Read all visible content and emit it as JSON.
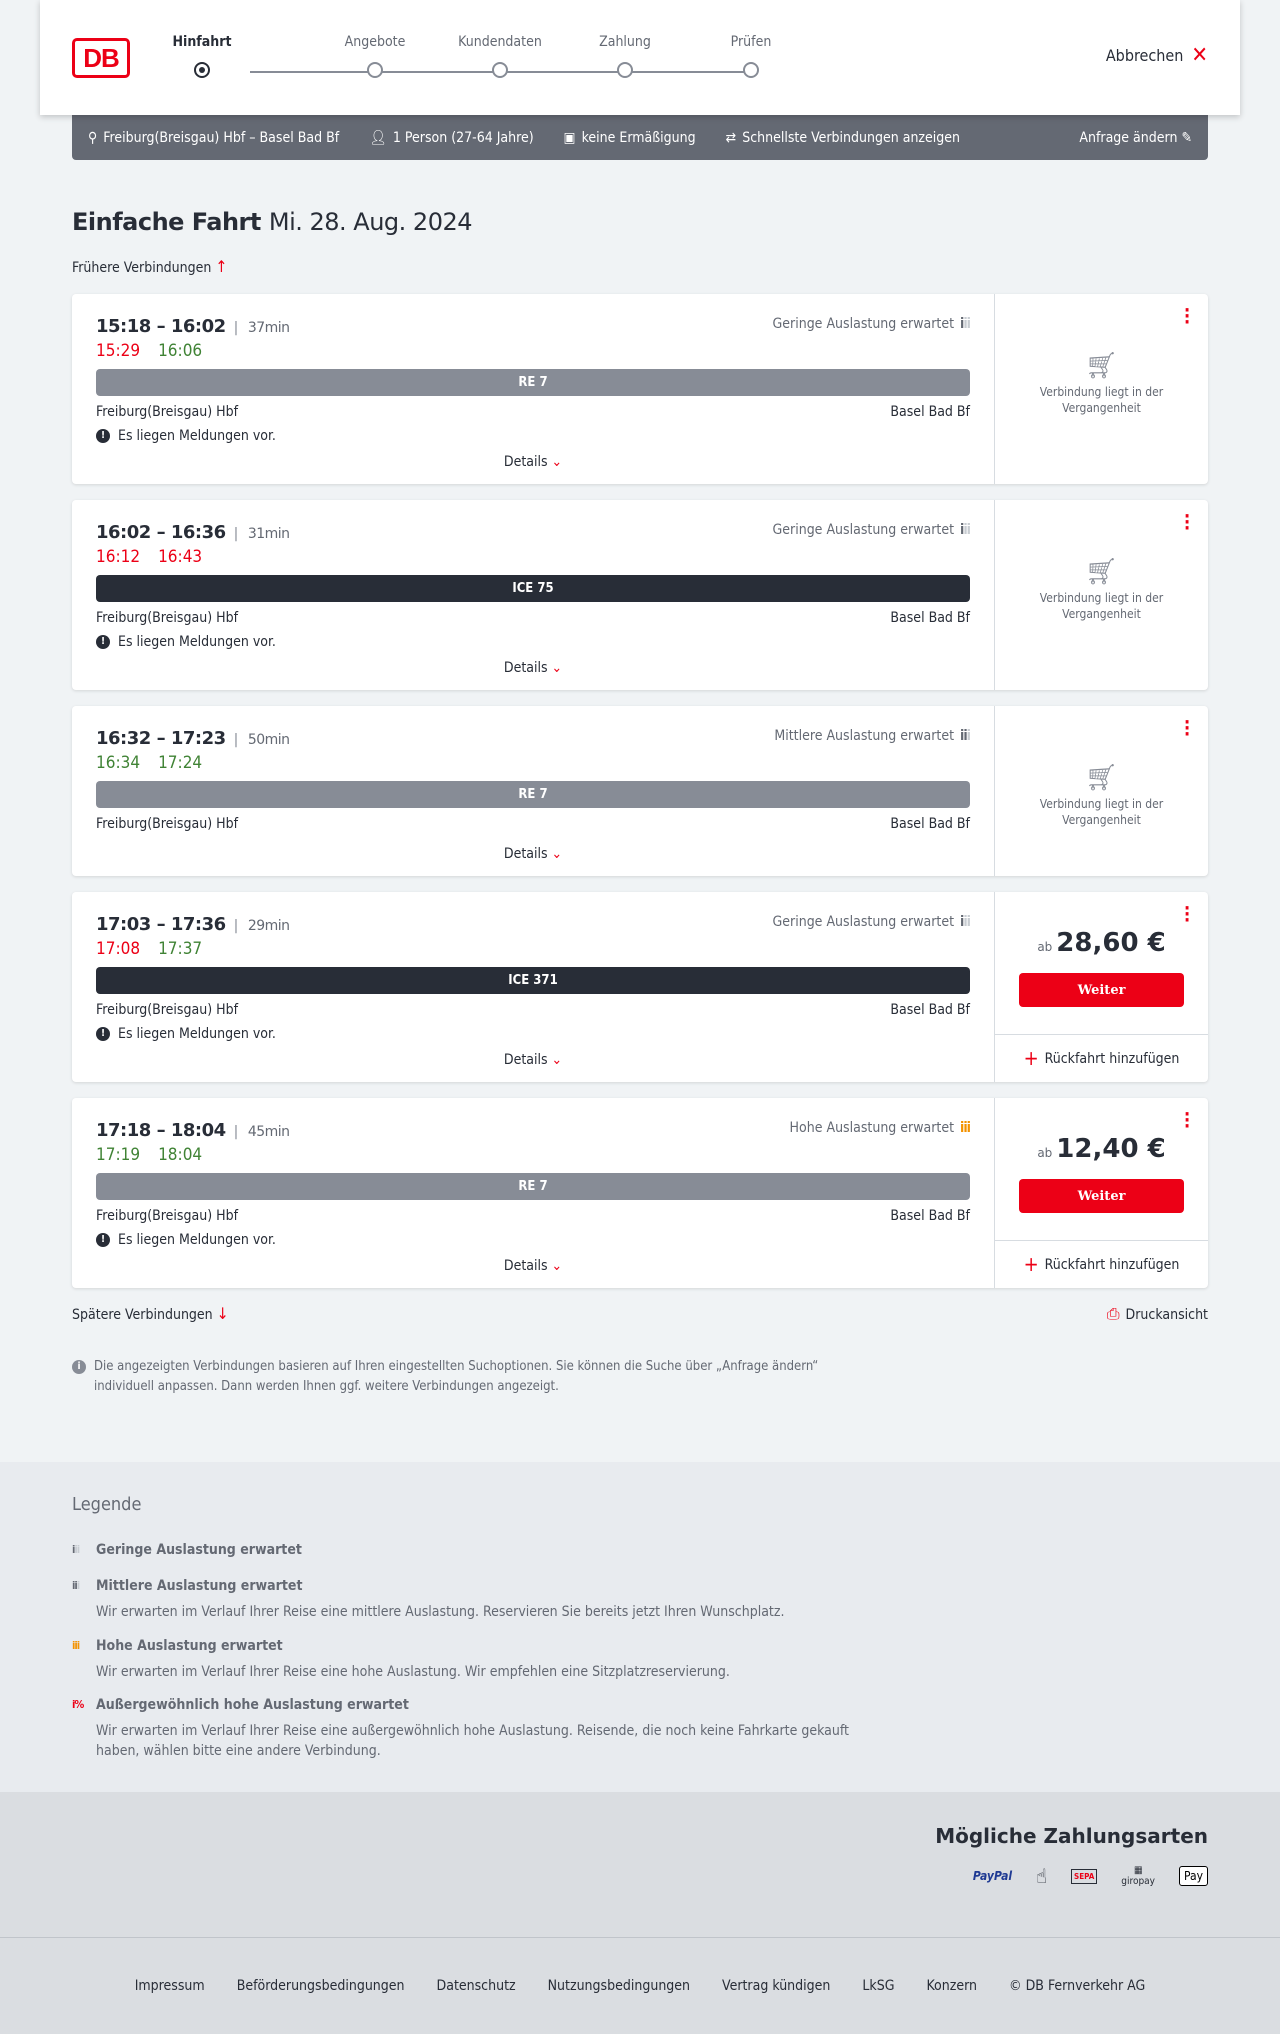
{
  "header": {
    "logo": "DB",
    "steps": [
      "Hinfahrt",
      "Angebote",
      "Kundendaten",
      "Zahlung",
      "Prüfen"
    ],
    "active_step": 0,
    "cancel": "Abbrechen"
  },
  "summary": {
    "route": "Freiburg(Breisgau) Hbf – Basel Bad Bf",
    "persons": "1 Person (27-64 Jahre)",
    "discount": "keine Ermäßigung",
    "fastest": "Schnellste Verbindungen anzeigen",
    "edit": "Anfrage ändern"
  },
  "title": {
    "trip": "Einfache Fahrt",
    "date": "Mi. 28. Aug. 2024"
  },
  "earlier": "Frühere Verbindungen",
  "later": "Spätere Verbindungen",
  "print": "Druckansicht",
  "details_label": "Details",
  "messages_label": "Es liegen Meldungen vor.",
  "past_label": "Verbindung liegt in der Vergangenheit",
  "weiter_label": "Weiter",
  "ab_label": "ab",
  "return_label": "Rückfahrt hinzufügen",
  "connections": [
    {
      "times": "15:18 – 16:02",
      "duration": "37min",
      "rt_dep": "15:29",
      "rt_dep_status": "late",
      "rt_arr": "16:06",
      "rt_arr_status": "ontime",
      "load": "Geringe Auslastung erwartet",
      "load_level": "low",
      "train": "RE 7",
      "train_type": "regional",
      "from": "Freiburg(Breisgau) Hbf",
      "to": "Basel Bad Bf",
      "messages": true,
      "past": true
    },
    {
      "times": "16:02 – 16:36",
      "duration": "31min",
      "rt_dep": "16:12",
      "rt_dep_status": "late",
      "rt_arr": "16:43",
      "rt_arr_status": "late",
      "load": "Geringe Auslastung erwartet",
      "load_level": "low",
      "train": "ICE 75",
      "train_type": "ice",
      "from": "Freiburg(Breisgau) Hbf",
      "to": "Basel Bad Bf",
      "messages": true,
      "past": true
    },
    {
      "times": "16:32 – 17:23",
      "duration": "50min",
      "rt_dep": "16:34",
      "rt_dep_status": "ontime",
      "rt_arr": "17:24",
      "rt_arr_status": "ontime",
      "load": "Mittlere Auslastung erwartet",
      "load_level": "medium",
      "train": "RE 7",
      "train_type": "regional",
      "from": "Freiburg(Breisgau) Hbf",
      "to": "Basel Bad Bf",
      "messages": false,
      "past": true
    },
    {
      "times": "17:03 – 17:36",
      "duration": "29min",
      "rt_dep": "17:08",
      "rt_dep_status": "late",
      "rt_arr": "17:37",
      "rt_arr_status": "ontime",
      "load": "Geringe Auslastung erwartet",
      "load_level": "low",
      "train": "ICE 371",
      "train_type": "ice",
      "from": "Freiburg(Breisgau) Hbf",
      "to": "Basel Bad Bf",
      "messages": true,
      "past": false,
      "price": "28,60 €"
    },
    {
      "times": "17:18 – 18:04",
      "duration": "45min",
      "rt_dep": "17:19",
      "rt_dep_status": "ontime",
      "rt_arr": "18:04",
      "rt_arr_status": "ontime",
      "load": "Hohe Auslastung erwartet",
      "load_level": "high",
      "train": "RE 7",
      "train_type": "regional",
      "from": "Freiburg(Breisgau) Hbf",
      "to": "Basel Bad Bf",
      "messages": true,
      "past": false,
      "price": "12,40 €"
    }
  ],
  "info": "Die angezeigten Verbindungen basieren auf Ihren eingestellten Suchoptionen. Sie können die Suche über „Anfrage ändern“ individuell anpassen. Dann werden Ihnen ggf. weitere Verbindungen angezeigt.",
  "legend": {
    "title": "Legende",
    "items": [
      {
        "title": "Geringe Auslastung erwartet",
        "desc": ""
      },
      {
        "title": "Mittlere Auslastung erwartet",
        "desc": "Wir erwarten im Verlauf Ihrer Reise eine mittlere Auslastung. Reservieren Sie bereits jetzt Ihren Wunschplatz."
      },
      {
        "title": "Hohe Auslastung erwartet",
        "desc": "Wir erwarten im Verlauf Ihrer Reise eine hohe Auslastung. Wir empfehlen eine Sitzplatzreservierung."
      },
      {
        "title": "Außergewöhnlich hohe Auslastung erwartet",
        "desc": "Wir erwarten im Verlauf Ihrer Reise eine außergewöhnlich hohe Auslastung. Reisende, die noch keine Fahrkarte gekauft haben, wählen bitte eine andere Verbindung."
      }
    ]
  },
  "payment": {
    "title": "Mögliche Zahlungsarten",
    "methods": [
      "PayPal",
      "Kreditkarte",
      "SEPA",
      "giropay",
      "Pay"
    ]
  },
  "footer": [
    "Impressum",
    "Beförderungsbedingungen",
    "Datenschutz",
    "Nutzungsbedingungen",
    "Vertrag kündigen",
    "LkSG",
    "Konzern",
    "© DB Fernverkehr AG"
  ],
  "colors": {
    "brand": "#ec0016",
    "late": "#ec0016",
    "ontime": "#408335",
    "summary_bar": "#646973",
    "high_load": "#f39200"
  }
}
